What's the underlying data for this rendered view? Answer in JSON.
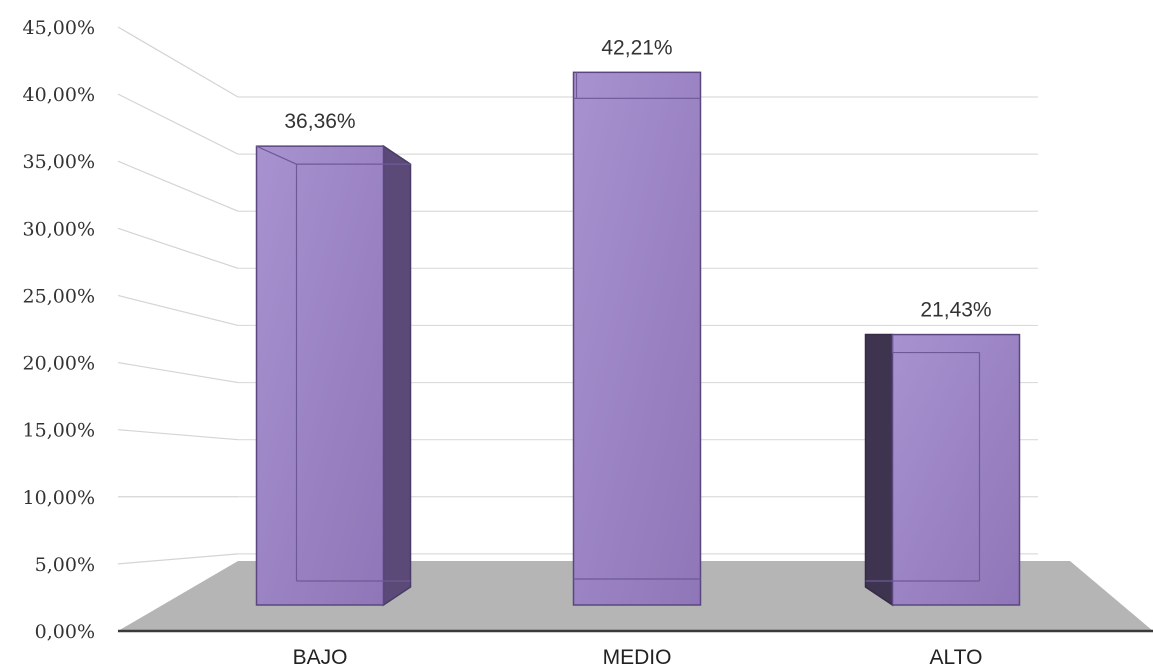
{
  "chart_data": {
    "type": "bar",
    "style": "3d",
    "categories": [
      "BAJO",
      "MEDIO",
      "ALTO"
    ],
    "values": [
      36.36,
      42.21,
      21.43
    ],
    "data_labels": [
      "36,36%",
      "42,21%",
      "21,43%"
    ],
    "y_ticks": [
      "0,00%",
      "5,00%",
      "10,00%",
      "15,00%",
      "20,00%",
      "25,00%",
      "30,00%",
      "35,00%",
      "40,00%",
      "45,00%"
    ],
    "ylim": [
      0,
      45
    ],
    "grid": true,
    "legend": "none",
    "bar_color": "#9b84c4",
    "floor_color": "#b5b5b5"
  }
}
